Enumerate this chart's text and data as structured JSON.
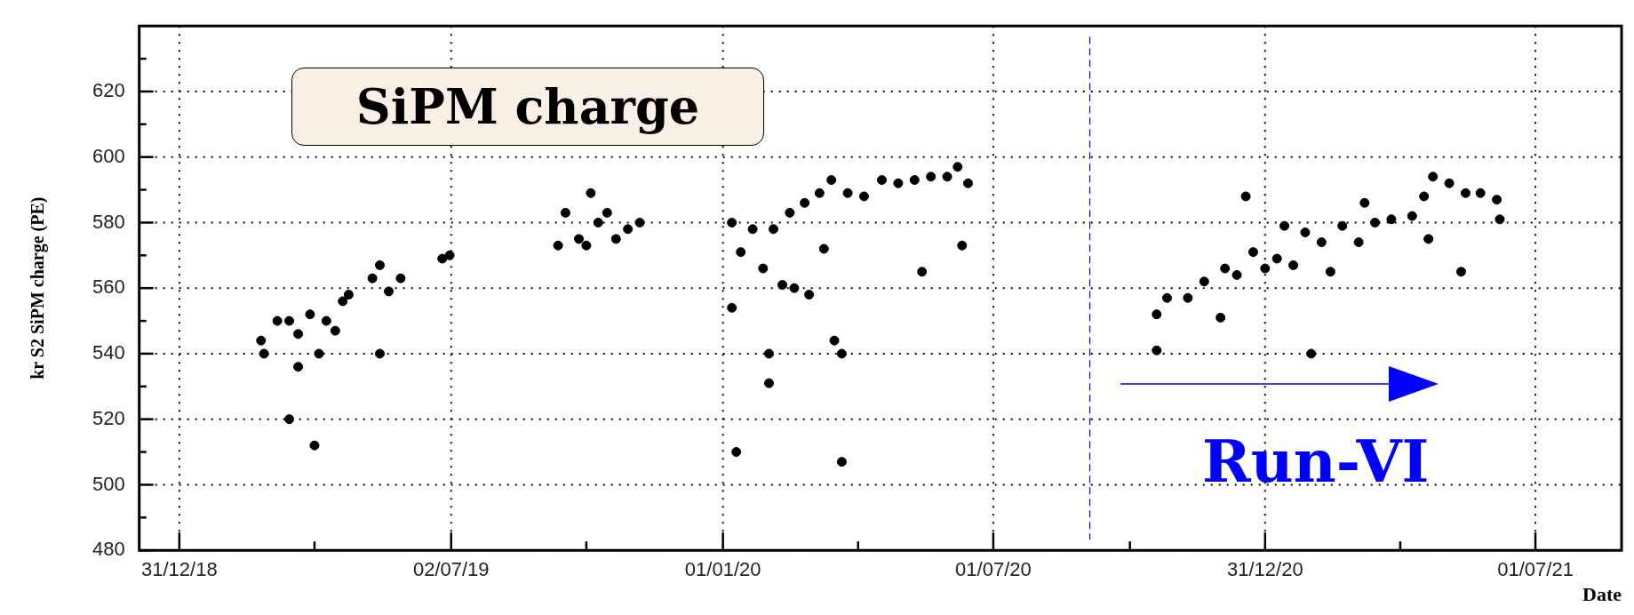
{
  "chart_data": {
    "type": "scatter",
    "xlabel": "Date",
    "ylabel": "kr S2 SiPM charge (PE)",
    "annotations": [
      "SiPM charge",
      "Run-VI"
    ],
    "xlim": [
      "2018-12-04",
      "2021-08-28"
    ],
    "xticks": [
      {
        "value": "2018-12-31",
        "label": "31/12/18"
      },
      {
        "value": "2019-04-01",
        "label": null
      },
      {
        "value": "2019-07-02",
        "label": "02/07/19"
      },
      {
        "value": "2019-10-01",
        "label": null
      },
      {
        "value": "2020-01-01",
        "label": "01/01/20"
      },
      {
        "value": "2020-04-01",
        "label": null
      },
      {
        "value": "2020-07-01",
        "label": "01/07/20"
      },
      {
        "value": "2020-10-01",
        "label": null
      },
      {
        "value": "2020-12-31",
        "label": "31/12/20"
      },
      {
        "value": "2021-04-01",
        "label": null
      },
      {
        "value": "2021-07-01",
        "label": "01/07/21"
      }
    ],
    "ylim": [
      480,
      640
    ],
    "yticks": [
      480,
      {
        "value": 490,
        "label": null
      },
      500,
      {
        "value": 510,
        "label": null
      },
      520,
      {
        "value": 530,
        "label": null
      },
      540,
      {
        "value": 550,
        "label": null
      },
      560,
      {
        "value": 570,
        "label": null
      },
      580,
      {
        "value": 590,
        "label": null
      },
      600,
      {
        "value": 610,
        "label": null
      },
      620,
      {
        "value": 630,
        "label": null
      }
    ],
    "grid": true,
    "legend": false,
    "marker": "circle",
    "ref_lines": [
      {
        "axis": "x",
        "value": "2020-09-04",
        "color": "#0000ff",
        "line_style": "dashed"
      }
    ],
    "series": [
      {
        "color": "#000000",
        "x": [
          "2019-02-24",
          "2019-02-26",
          "2019-03-07",
          "2019-03-15",
          "2019-03-15",
          "2019-03-21",
          "2019-03-21",
          "2019-03-29",
          "2019-04-01",
          "2019-04-04",
          "2019-04-09",
          "2019-04-15",
          "2019-04-20",
          "2019-04-24",
          "2019-05-10",
          "2019-05-15",
          "2019-05-15",
          "2019-05-21",
          "2019-05-29",
          "2019-06-26",
          "2019-07-01",
          "2019-09-12",
          "2019-09-17",
          "2019-09-26",
          "2019-10-01",
          "2019-10-04",
          "2019-10-09",
          "2019-10-15",
          "2019-10-21",
          "2019-10-29",
          "2019-11-06",
          "2020-01-07",
          "2020-01-07",
          "2020-01-10",
          "2020-01-13",
          "2020-01-21",
          "2020-01-28",
          "2020-02-01",
          "2020-02-01",
          "2020-02-04",
          "2020-02-10",
          "2020-02-15",
          "2020-02-18",
          "2020-02-25",
          "2020-02-28",
          "2020-03-06",
          "2020-03-09",
          "2020-03-14",
          "2020-03-16",
          "2020-03-21",
          "2020-03-21",
          "2020-03-25",
          "2020-04-05",
          "2020-04-17",
          "2020-04-28",
          "2020-05-09",
          "2020-05-14",
          "2020-05-20",
          "2020-05-31",
          "2020-06-07",
          "2020-06-10",
          "2020-06-14",
          "2020-10-19",
          "2020-10-19",
          "2020-10-26",
          "2020-11-09",
          "2020-11-20",
          "2020-12-01",
          "2020-12-04",
          "2020-12-12",
          "2020-12-18",
          "2020-12-23",
          "2020-12-31",
          "2021-01-08",
          "2021-01-13",
          "2021-01-19",
          "2021-01-27",
          "2021-01-31",
          "2021-02-07",
          "2021-02-13",
          "2021-02-21",
          "2021-03-04",
          "2021-03-08",
          "2021-03-15",
          "2021-03-26",
          "2021-04-09",
          "2021-04-17",
          "2021-04-20",
          "2021-04-23",
          "2021-05-04",
          "2021-05-12",
          "2021-05-15",
          "2021-05-25",
          "2021-06-05",
          "2021-06-07"
        ],
        "values": [
          544,
          540,
          550,
          520,
          550,
          546,
          536,
          552,
          512,
          540,
          550,
          547,
          556,
          558,
          563,
          567,
          540,
          559,
          563,
          569,
          570,
          573,
          583,
          575,
          573,
          589,
          580,
          583,
          575,
          578,
          580,
          580,
          554,
          510,
          571,
          578,
          566,
          531,
          540,
          578,
          561,
          583,
          560,
          586,
          558,
          589,
          572,
          593,
          544,
          507,
          540,
          589,
          588,
          593,
          592,
          593,
          565,
          594,
          594,
          597,
          573,
          592,
          541,
          552,
          557,
          557,
          562,
          551,
          566,
          564,
          588,
          571,
          566,
          569,
          579,
          567,
          577,
          540,
          574,
          565,
          579,
          574,
          586,
          580,
          581,
          582,
          588,
          575,
          594,
          592,
          565,
          589,
          589,
          587,
          581
        ]
      }
    ]
  }
}
